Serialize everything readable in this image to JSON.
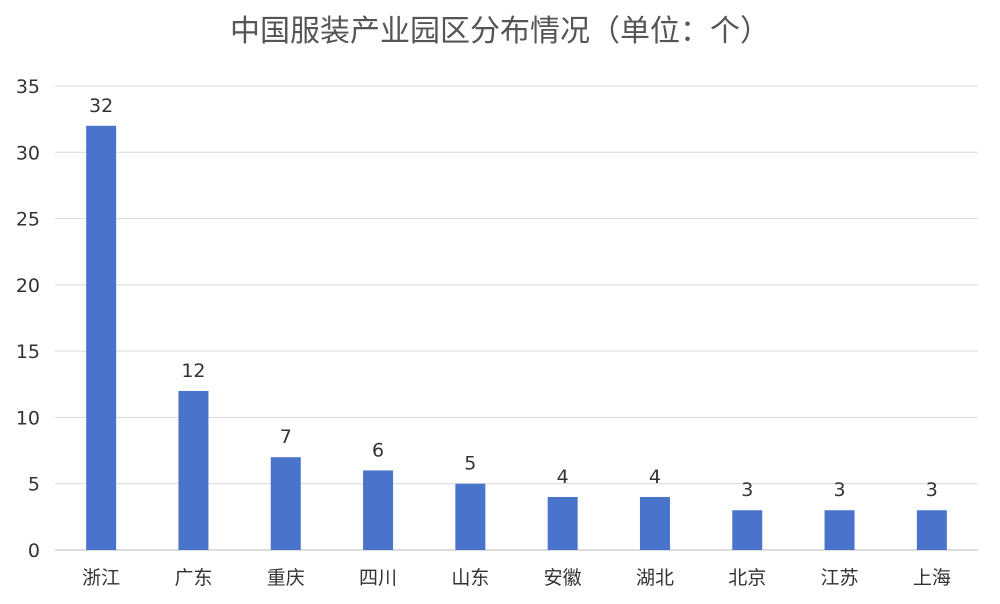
{
  "chart_data": {
    "type": "bar",
    "title": "中国服装产业园区分布情况（单位：个）",
    "xlabel": "",
    "ylabel": "",
    "categories": [
      "浙江",
      "广东",
      "重庆",
      "四川",
      "山东",
      "安徽",
      "湖北",
      "北京",
      "江苏",
      "上海"
    ],
    "values": [
      32,
      12,
      7,
      6,
      5,
      4,
      4,
      3,
      3,
      3
    ],
    "ylim": [
      0,
      35
    ],
    "yticks": [
      0,
      5,
      10,
      15,
      20,
      25,
      30,
      35
    ],
    "grid": true,
    "data_labels": true,
    "bar_color": "#4a74cc"
  }
}
